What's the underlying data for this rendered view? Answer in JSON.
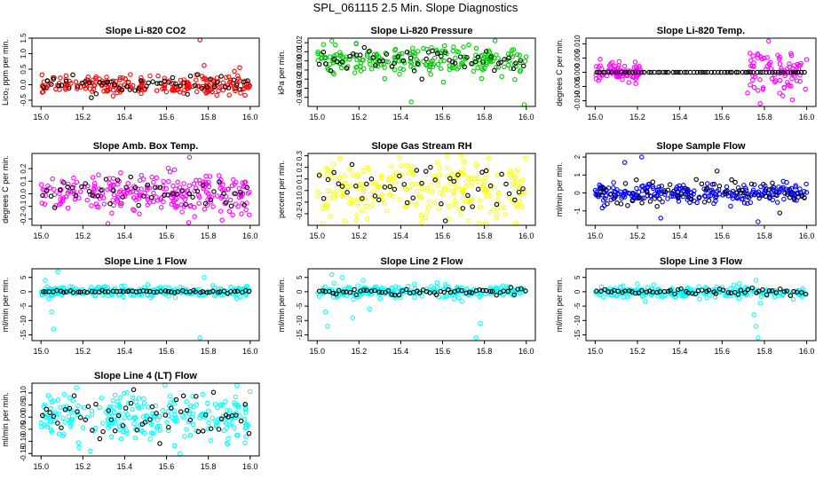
{
  "page_title": "SPL_061115  2.5 Min. Slope Diagnostics",
  "colors": {
    "red": "#ff0000",
    "green": "#00cc00",
    "magenta": "#ff00ff",
    "yellow": "#ffff00",
    "blue": "#0000ff",
    "cyan": "#00ffff",
    "black": "#000000"
  },
  "chart_data": [
    {
      "type": "scatter",
      "title": "Slope Li-820 CO2",
      "ylabel": "Lico₂ ppm per min.",
      "xlabel": "",
      "xlim": [
        15.0,
        16.0
      ],
      "ylim": [
        -0.7,
        1.5
      ],
      "xticks": [
        "15.0",
        "15.2",
        "15.4",
        "15.6",
        "15.8",
        "16.0"
      ],
      "yticks": [
        "-0.5",
        "0.0",
        "0.5",
        "1.0",
        "1.5"
      ],
      "ytick_values": [
        -0.5,
        0.0,
        0.5,
        1.0,
        1.5
      ],
      "series": [
        {
          "name": "cloud",
          "color": "#ff0000",
          "spread": 0.15,
          "center": 0.0,
          "n": 220
        },
        {
          "name": "black",
          "color": "#000000",
          "spread": 0.12,
          "center": 0.0,
          "n": 55
        }
      ],
      "outliers": [
        {
          "x": 15.76,
          "y": 1.48
        },
        {
          "x": 15.78,
          "y": 0.62
        },
        {
          "x": 15.95,
          "y": 0.55
        }
      ]
    },
    {
      "type": "scatter",
      "title": "Slope Li-820 Pressure",
      "ylabel": "kPa per min.",
      "xlabel": "",
      "xlim": [
        15.0,
        16.0
      ],
      "ylim": [
        -0.05,
        0.025
      ],
      "xticks": [
        "15.0",
        "15.2",
        "15.4",
        "15.6",
        "15.8",
        "16.0"
      ],
      "yticks": [
        "-0.04",
        "-0.03",
        "-0.02",
        "-0.01",
        "0.00",
        "0.01",
        "0.02"
      ],
      "ytick_values": [
        -0.04,
        -0.03,
        -0.02,
        -0.01,
        0.0,
        0.01,
        0.02
      ],
      "series": [
        {
          "name": "cloud",
          "color": "#00cc00",
          "spread": 0.008,
          "center": 0.0,
          "n": 220
        },
        {
          "name": "black",
          "color": "#000000",
          "spread": 0.007,
          "center": 0.0,
          "n": 55
        }
      ],
      "outliers": [
        {
          "x": 15.07,
          "y": 0.022
        },
        {
          "x": 15.03,
          "y": 0.018
        },
        {
          "x": 15.45,
          "y": -0.045
        },
        {
          "x": 15.99,
          "y": -0.048
        }
      ]
    },
    {
      "type": "scatter",
      "title": "Slope Li-820 Temp.",
      "ylabel": "degrees C per min.",
      "xlabel": "",
      "xlim": [
        15.0,
        16.0
      ],
      "ylim": [
        -0.012,
        0.012
      ],
      "xticks": [
        "15.0",
        "15.2",
        "15.4",
        "15.6",
        "15.8",
        "16.0"
      ],
      "yticks": [
        "-0.010",
        "-0.005",
        "0.000",
        "0.005",
        "0.010"
      ],
      "ytick_values": [
        -0.01,
        -0.005,
        0.0,
        0.005,
        0.01
      ],
      "series": [
        {
          "name": "cloud",
          "color": "#ff00ff",
          "spread": 0.0015,
          "center": 0.0,
          "n": 80,
          "xrange": [
            15.0,
            15.22
          ]
        },
        {
          "name": "cloud2",
          "color": "#ff00ff",
          "spread": 0.004,
          "center": 0.0,
          "n": 80,
          "xrange": [
            15.72,
            16.0
          ]
        },
        {
          "name": "black",
          "color": "#000000",
          "spread": 0.0,
          "center": 0.0,
          "n": 70
        }
      ],
      "outliers": [
        {
          "x": 15.78,
          "y": -0.011
        },
        {
          "x": 15.82,
          "y": 0.011
        }
      ]
    },
    {
      "type": "scatter",
      "title": "Slope Amb. Box Temp.",
      "ylabel": "degrees C per min.",
      "xlabel": "",
      "xlim": [
        15.0,
        16.0
      ],
      "ylim": [
        -0.25,
        0.32
      ],
      "xticks": [
        "15.0",
        "15.2",
        "15.4",
        "15.6",
        "15.8",
        "16.0"
      ],
      "yticks": [
        "-0.2",
        "-0.1",
        "0.0",
        "0.1",
        "0.2"
      ],
      "ytick_values": [
        -0.2,
        -0.1,
        0.0,
        0.1,
        0.2
      ],
      "series": [
        {
          "name": "cloud",
          "color": "#ff00ff",
          "spread": 0.08,
          "center": 0.0,
          "n": 260
        },
        {
          "name": "black",
          "color": "#000000",
          "spread": 0.06,
          "center": 0.0,
          "n": 50
        }
      ],
      "outliers": [
        {
          "x": 15.71,
          "y": 0.29
        },
        {
          "x": 15.32,
          "y": -0.24
        }
      ]
    },
    {
      "type": "scatter",
      "title": "Slope Gas Stream RH",
      "ylabel": "percent per min.",
      "xlabel": "",
      "xlim": [
        15.0,
        16.0
      ],
      "ylim": [
        -0.3,
        0.32
      ],
      "xticks": [
        "15.0",
        "15.2",
        "15.4",
        "15.6",
        "15.8",
        "16.0"
      ],
      "yticks": [
        "-0.2",
        "-0.1",
        "0.0",
        "0.1",
        "0.2",
        "0.3"
      ],
      "ytick_values": [
        -0.2,
        -0.1,
        0.0,
        0.1,
        0.2,
        0.3
      ],
      "series": [
        {
          "name": "cloud",
          "color": "#ffff00",
          "spread": 0.13,
          "center": 0.0,
          "n": 250
        },
        {
          "name": "black",
          "color": "#000000",
          "spread": 0.1,
          "center": 0.0,
          "n": 45
        }
      ],
      "outliers": []
    },
    {
      "type": "scatter",
      "title": "Slope Sample Flow",
      "ylabel": "ml/min per min.",
      "xlabel": "",
      "xlim": [
        15.0,
        16.0
      ],
      "ylim": [
        -1.8,
        2.2
      ],
      "xticks": [
        "15.0",
        "15.2",
        "15.4",
        "15.6",
        "15.8",
        "16.0"
      ],
      "yticks": [
        "-1",
        "0",
        "1",
        "2"
      ],
      "ytick_values": [
        -1,
        0,
        1,
        2
      ],
      "series": [
        {
          "name": "cloud",
          "color": "#0000ff",
          "spread": 0.25,
          "center": 0.0,
          "n": 260
        },
        {
          "name": "black",
          "color": "#000000",
          "spread": 0.45,
          "center": 0.0,
          "n": 60
        }
      ],
      "outliers": [
        {
          "x": 15.22,
          "y": 2.0
        },
        {
          "x": 15.14,
          "y": 1.7
        },
        {
          "x": 15.77,
          "y": -1.6
        },
        {
          "x": 15.31,
          "y": -1.4
        }
      ]
    },
    {
      "type": "scatter",
      "title": "Slope Line 1 Flow",
      "ylabel": "ml/min per min.",
      "xlabel": "",
      "xlim": [
        15.0,
        16.0
      ],
      "ylim": [
        -17,
        8
      ],
      "xticks": [
        "15.0",
        "15.2",
        "15.4",
        "15.6",
        "15.8",
        "16.0"
      ],
      "yticks": [
        "-15",
        "-10",
        "-5",
        "0",
        "5"
      ],
      "ytick_values": [
        -15,
        -10,
        -5,
        0,
        5
      ],
      "series": [
        {
          "name": "cloud",
          "color": "#00ffff",
          "spread": 1.0,
          "center": 0.0,
          "n": 260
        },
        {
          "name": "black",
          "color": "#000000",
          "spread": 0.2,
          "center": 0.0,
          "n": 60
        }
      ],
      "outliers": [
        {
          "x": 15.06,
          "y": -13
        },
        {
          "x": 15.08,
          "y": 7
        },
        {
          "x": 15.05,
          "y": -7
        },
        {
          "x": 15.76,
          "y": -16
        },
        {
          "x": 15.78,
          "y": 5
        },
        {
          "x": 15.02,
          "y": 4
        }
      ]
    },
    {
      "type": "scatter",
      "title": "Slope Line 2 Flow",
      "ylabel": "ml/min per min.",
      "xlabel": "",
      "xlim": [
        15.0,
        16.0
      ],
      "ylim": [
        -17,
        8
      ],
      "xticks": [
        "15.0",
        "15.2",
        "15.4",
        "15.6",
        "15.8",
        "16.0"
      ],
      "yticks": [
        "-15",
        "-10",
        "-5",
        "0",
        "5"
      ],
      "ytick_values": [
        -15,
        -10,
        -5,
        0,
        5
      ],
      "series": [
        {
          "name": "cloud",
          "color": "#00ffff",
          "spread": 1.0,
          "center": 0.0,
          "n": 240
        },
        {
          "name": "black",
          "color": "#000000",
          "spread": 0.6,
          "center": 0.0,
          "n": 60
        }
      ],
      "outliers": [
        {
          "x": 15.05,
          "y": -12
        },
        {
          "x": 15.07,
          "y": 6
        },
        {
          "x": 15.04,
          "y": -7
        },
        {
          "x": 15.12,
          "y": 5
        },
        {
          "x": 15.17,
          "y": -9
        },
        {
          "x": 15.22,
          "y": 4
        },
        {
          "x": 15.76,
          "y": -16
        },
        {
          "x": 15.78,
          "y": -11
        },
        {
          "x": 15.25,
          "y": -6
        },
        {
          "x": 15.08,
          "y": 3
        }
      ]
    },
    {
      "type": "scatter",
      "title": "Slope Line 3 Flow",
      "ylabel": "ml/min per min.",
      "xlabel": "",
      "xlim": [
        15.0,
        16.0
      ],
      "ylim": [
        -17,
        8
      ],
      "xticks": [
        "15.0",
        "15.2",
        "15.4",
        "15.6",
        "15.8",
        "16.0"
      ],
      "yticks": [
        "-15",
        "-10",
        "-5",
        "0",
        "5"
      ],
      "ytick_values": [
        -15,
        -10,
        -5,
        0,
        5
      ],
      "series": [
        {
          "name": "cloud",
          "color": "#00ffff",
          "spread": 1.0,
          "center": 0.0,
          "n": 240
        },
        {
          "name": "black",
          "color": "#000000",
          "spread": 0.5,
          "center": 0.0,
          "n": 60
        }
      ],
      "outliers": [
        {
          "x": 15.77,
          "y": -16
        },
        {
          "x": 15.76,
          "y": -12
        },
        {
          "x": 15.75,
          "y": -8
        },
        {
          "x": 15.76,
          "y": 4
        },
        {
          "x": 15.78,
          "y": -4
        }
      ]
    },
    {
      "type": "scatter",
      "title": "Slope Line 4 (LT) Flow",
      "ylabel": "ml/min per min.",
      "xlabel": "",
      "xlim": [
        15.0,
        16.0
      ],
      "ylim": [
        -0.16,
        0.14
      ],
      "xticks": [
        "15.0",
        "15.2",
        "15.4",
        "15.6",
        "15.8",
        "16.0"
      ],
      "yticks": [
        "-0.15",
        "-0.10",
        "-0.05",
        "0.00",
        "0.05",
        "0.10"
      ],
      "ytick_values": [
        -0.15,
        -0.1,
        -0.05,
        0.0,
        0.05,
        0.1
      ],
      "series": [
        {
          "name": "cloud",
          "color": "#00ffff",
          "spread": 0.05,
          "center": 0.0,
          "n": 260
        },
        {
          "name": "black",
          "color": "#000000",
          "spread": 0.05,
          "center": 0.0,
          "n": 55
        }
      ],
      "outliers": []
    }
  ]
}
